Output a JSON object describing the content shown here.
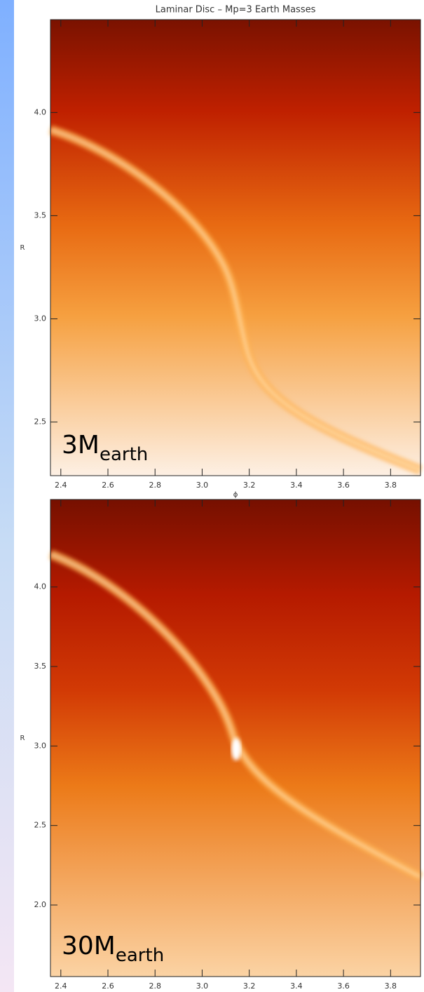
{
  "chart_data": [
    {
      "type": "heatmap",
      "title": "Laminar Disc – Mp=3 Earth Masses",
      "xlabel": "ϕ",
      "ylabel": "R",
      "xlim": [
        2.356,
        3.927
      ],
      "ylim": [
        2.24,
        4.45
      ],
      "xticks": [
        2.4,
        2.6,
        2.8,
        {
          "value": 3,
          "label": "3.0"
        },
        3.2,
        3.4,
        3.6,
        3.8
      ],
      "yticks": [
        2.5,
        {
          "value": 3,
          "label": "3.0"
        },
        3.5,
        {
          "value": 4,
          "label": "4.0"
        }
      ],
      "annotation": {
        "text": "3M",
        "subscript": "earth"
      }
    },
    {
      "type": "heatmap",
      "xlabel": "ϕ",
      "ylabel": "R",
      "xlim": [
        2.356,
        3.927
      ],
      "ylim": [
        1.55,
        4.55
      ],
      "xticks": [
        2.4,
        2.6,
        2.8,
        {
          "value": 3,
          "label": "3.0"
        },
        3.2,
        3.4,
        3.6,
        3.8
      ],
      "yticks": [
        {
          "value": 2,
          "label": "2.0"
        },
        2.5,
        {
          "value": 3,
          "label": "3.0"
        },
        3.5,
        {
          "value": 4,
          "label": "4.0"
        }
      ],
      "annotation": {
        "text": "30M",
        "subscript": "earth"
      }
    }
  ]
}
